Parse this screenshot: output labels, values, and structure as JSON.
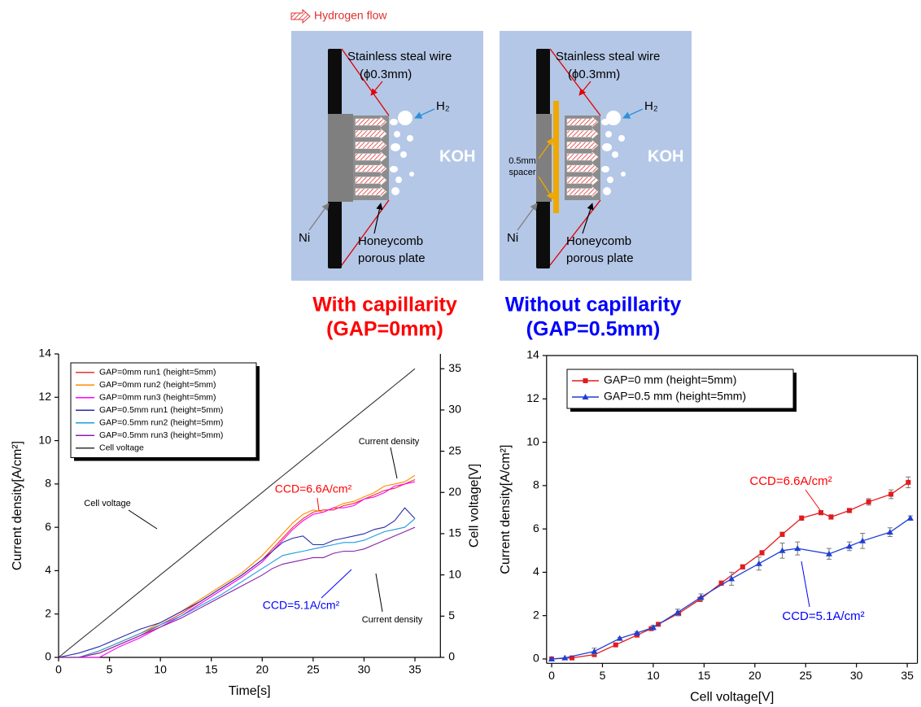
{
  "diagram": {
    "legend": "Hydrogen flow",
    "panels": [
      {
        "wire_label": "Stainless steal wire",
        "wire_size": "(ϕ0.3mm)",
        "gas": "H₂",
        "electrolyte": "KOH",
        "electrode": "Ni",
        "plate_label": [
          "Honeycomb",
          "porous plate"
        ],
        "caption": [
          "With capillarity",
          "(GAP=0mm)"
        ],
        "caption_color": "#ff0000"
      },
      {
        "wire_label": "Stainless steal wire",
        "wire_size": "(ϕ0.3mm)",
        "gas": "H₂",
        "electrolyte": "KOH",
        "electrode": "Ni",
        "spacer_label": [
          "0.5mm",
          "spacer"
        ],
        "plate_label": [
          "Honeycomb",
          "porous plate"
        ],
        "caption": [
          "Without capillarity",
          "(GAP=0.5mm)"
        ],
        "caption_color": "#0000ff"
      }
    ]
  },
  "chart_data": [
    {
      "type": "line",
      "x": [
        0,
        2,
        4,
        6,
        8,
        10,
        12,
        14,
        16,
        18,
        20,
        21,
        22,
        23,
        24,
        25,
        26,
        27,
        28,
        29,
        30,
        31,
        32,
        33,
        34,
        35
      ],
      "xlim": [
        0,
        37.5
      ],
      "xticks": [
        0,
        5,
        10,
        15,
        20,
        25,
        30,
        35
      ],
      "ylim": [
        0,
        14
      ],
      "yticks": [
        0,
        2,
        4,
        6,
        8,
        10,
        12,
        14
      ],
      "y2lim": [
        0,
        36.8
      ],
      "y2ticks": [
        0,
        5,
        10,
        15,
        20,
        25,
        30,
        35
      ],
      "xlabel": "Time[s]",
      "ylabel": "Current density[A/cm²]",
      "y2label": "Cell voltage[V]",
      "legend": "upper left",
      "series": [
        {
          "name": "GAP=0mm run1 (height=5mm)",
          "color": "#e8322c",
          "values": [
            0,
            0,
            0.2,
            0.6,
            1.0,
            1.5,
            2.0,
            2.6,
            3.2,
            3.8,
            4.5,
            5.0,
            5.5,
            6.0,
            6.4,
            6.7,
            6.8,
            6.8,
            7.0,
            7.1,
            7.3,
            7.5,
            7.7,
            7.8,
            8.0,
            8.2
          ]
        },
        {
          "name": "GAP=0mm run2 (height=5mm)",
          "color": "#ff8c00",
          "values": [
            0,
            0,
            0.3,
            0.7,
            1.1,
            1.6,
            2.1,
            2.7,
            3.3,
            3.9,
            4.7,
            5.2,
            5.7,
            6.2,
            6.6,
            6.8,
            6.7,
            6.9,
            7.1,
            7.2,
            7.4,
            7.6,
            7.9,
            8.0,
            8.1,
            8.4
          ]
        },
        {
          "name": "GAP=0mm run3 (height=5mm)",
          "color": "#ff00ff",
          "values": [
            0,
            0,
            0,
            0.5,
            0.9,
            1.4,
            1.9,
            2.5,
            3.1,
            3.7,
            4.4,
            4.9,
            5.4,
            5.9,
            6.3,
            6.6,
            6.7,
            6.9,
            6.9,
            7.0,
            7.3,
            7.4,
            7.6,
            7.9,
            8.0,
            8.1
          ]
        },
        {
          "name": "GAP=0.5mm run1 (height=5mm)",
          "color": "#2b2ba8",
          "values": [
            0,
            0.2,
            0.5,
            0.9,
            1.3,
            1.6,
            2.1,
            2.6,
            3.2,
            3.8,
            4.5,
            4.9,
            5.3,
            5.5,
            5.6,
            5.2,
            5.2,
            5.4,
            5.5,
            5.6,
            5.7,
            5.9,
            6.0,
            6.3,
            6.9,
            6.4
          ]
        },
        {
          "name": "GAP=0.5mm run2 (height=5mm)",
          "color": "#1e9be0",
          "values": [
            0,
            0,
            0.3,
            0.7,
            1.1,
            1.5,
            1.9,
            2.4,
            2.9,
            3.5,
            4.1,
            4.4,
            4.7,
            4.8,
            4.9,
            5.0,
            5.1,
            5.2,
            5.3,
            5.3,
            5.4,
            5.6,
            5.8,
            5.9,
            6.0,
            6.4
          ]
        },
        {
          "name": "GAP=0.5mm run3 (height=5mm)",
          "color": "#8b1fa8",
          "values": [
            0,
            0,
            0.2,
            0.6,
            1.0,
            1.4,
            1.8,
            2.3,
            2.8,
            3.3,
            3.8,
            4.1,
            4.3,
            4.4,
            4.5,
            4.6,
            4.6,
            4.8,
            4.9,
            4.9,
            5.0,
            5.2,
            5.4,
            5.6,
            5.8,
            6.0
          ]
        },
        {
          "name": "Cell voltage",
          "color": "#333333",
          "axis": "y2",
          "values": [
            0,
            2,
            4,
            6,
            8,
            10,
            12,
            14,
            16,
            18,
            20,
            21,
            22,
            23,
            24,
            25,
            26,
            27,
            28,
            29,
            30,
            31,
            32,
            33,
            34,
            35
          ]
        }
      ],
      "annotations": [
        {
          "text": "Current density",
          "color": "#000000"
        },
        {
          "text": "Cell voltage",
          "color": "#000000"
        },
        {
          "text": "CCD=6.6A/cm²",
          "color": "#ff0000"
        },
        {
          "text": "CCD=5.1A/cm²",
          "color": "#0000ff"
        },
        {
          "text": "Current density",
          "color": "#000000"
        }
      ]
    },
    {
      "type": "line",
      "xlim": [
        -0.5,
        36
      ],
      "xticks": [
        0,
        5,
        10,
        15,
        20,
        25,
        30,
        35
      ],
      "ylim": [
        -0.2,
        14
      ],
      "yticks": [
        0,
        2,
        4,
        6,
        8,
        10,
        12,
        14
      ],
      "xlabel": "Cell voltage[V]",
      "ylabel": "Current density[A/cm²]",
      "legend": "upper left",
      "series": [
        {
          "name": "GAP=0 mm (height=5mm)",
          "color": "#e41a1c",
          "marker": "square",
          "x": [
            0,
            2,
            4.2,
            6.3,
            8.4,
            9.8,
            10.5,
            12.5,
            14.6,
            16.7,
            18.8,
            20.7,
            22.7,
            24.6,
            26.5,
            27.5,
            29.3,
            31.2,
            33.4,
            35.1
          ],
          "values": [
            0,
            0.05,
            0.2,
            0.65,
            1.1,
            1.4,
            1.6,
            2.1,
            2.75,
            3.5,
            4.25,
            4.9,
            5.75,
            6.5,
            6.75,
            6.55,
            6.85,
            7.25,
            7.6,
            8.15
          ],
          "errors": [
            0,
            0,
            0,
            0.05,
            0.05,
            0.05,
            0.05,
            0.1,
            0.1,
            0.1,
            0.1,
            0.1,
            0.1,
            0.1,
            0.1,
            0.1,
            0.1,
            0.15,
            0.2,
            0.25
          ]
        },
        {
          "name": "GAP=0.5 mm (height=5mm)",
          "color": "#1f3fd6",
          "marker": "triangle",
          "x": [
            0,
            1.3,
            4.2,
            6.7,
            8.4,
            10,
            12.4,
            14.7,
            17.7,
            20.4,
            22.7,
            24.2,
            27.3,
            29.3,
            30.6,
            33.3,
            35.3
          ],
          "values": [
            0,
            0.05,
            0.35,
            0.95,
            1.2,
            1.45,
            2.15,
            2.85,
            3.7,
            4.4,
            5,
            5.1,
            4.85,
            5.2,
            5.45,
            5.85,
            6.5
          ],
          "errors": [
            0,
            0,
            0.15,
            0.05,
            0.05,
            0.1,
            0.15,
            0.15,
            0.3,
            0.3,
            0.35,
            0.3,
            0.25,
            0.2,
            0.35,
            0.2,
            0.1
          ]
        }
      ],
      "annotations": [
        {
          "text": "CCD=6.6A/cm²",
          "color": "#ff0000"
        },
        {
          "text": "CCD=5.1A/cm²",
          "color": "#0000ff"
        }
      ]
    }
  ]
}
